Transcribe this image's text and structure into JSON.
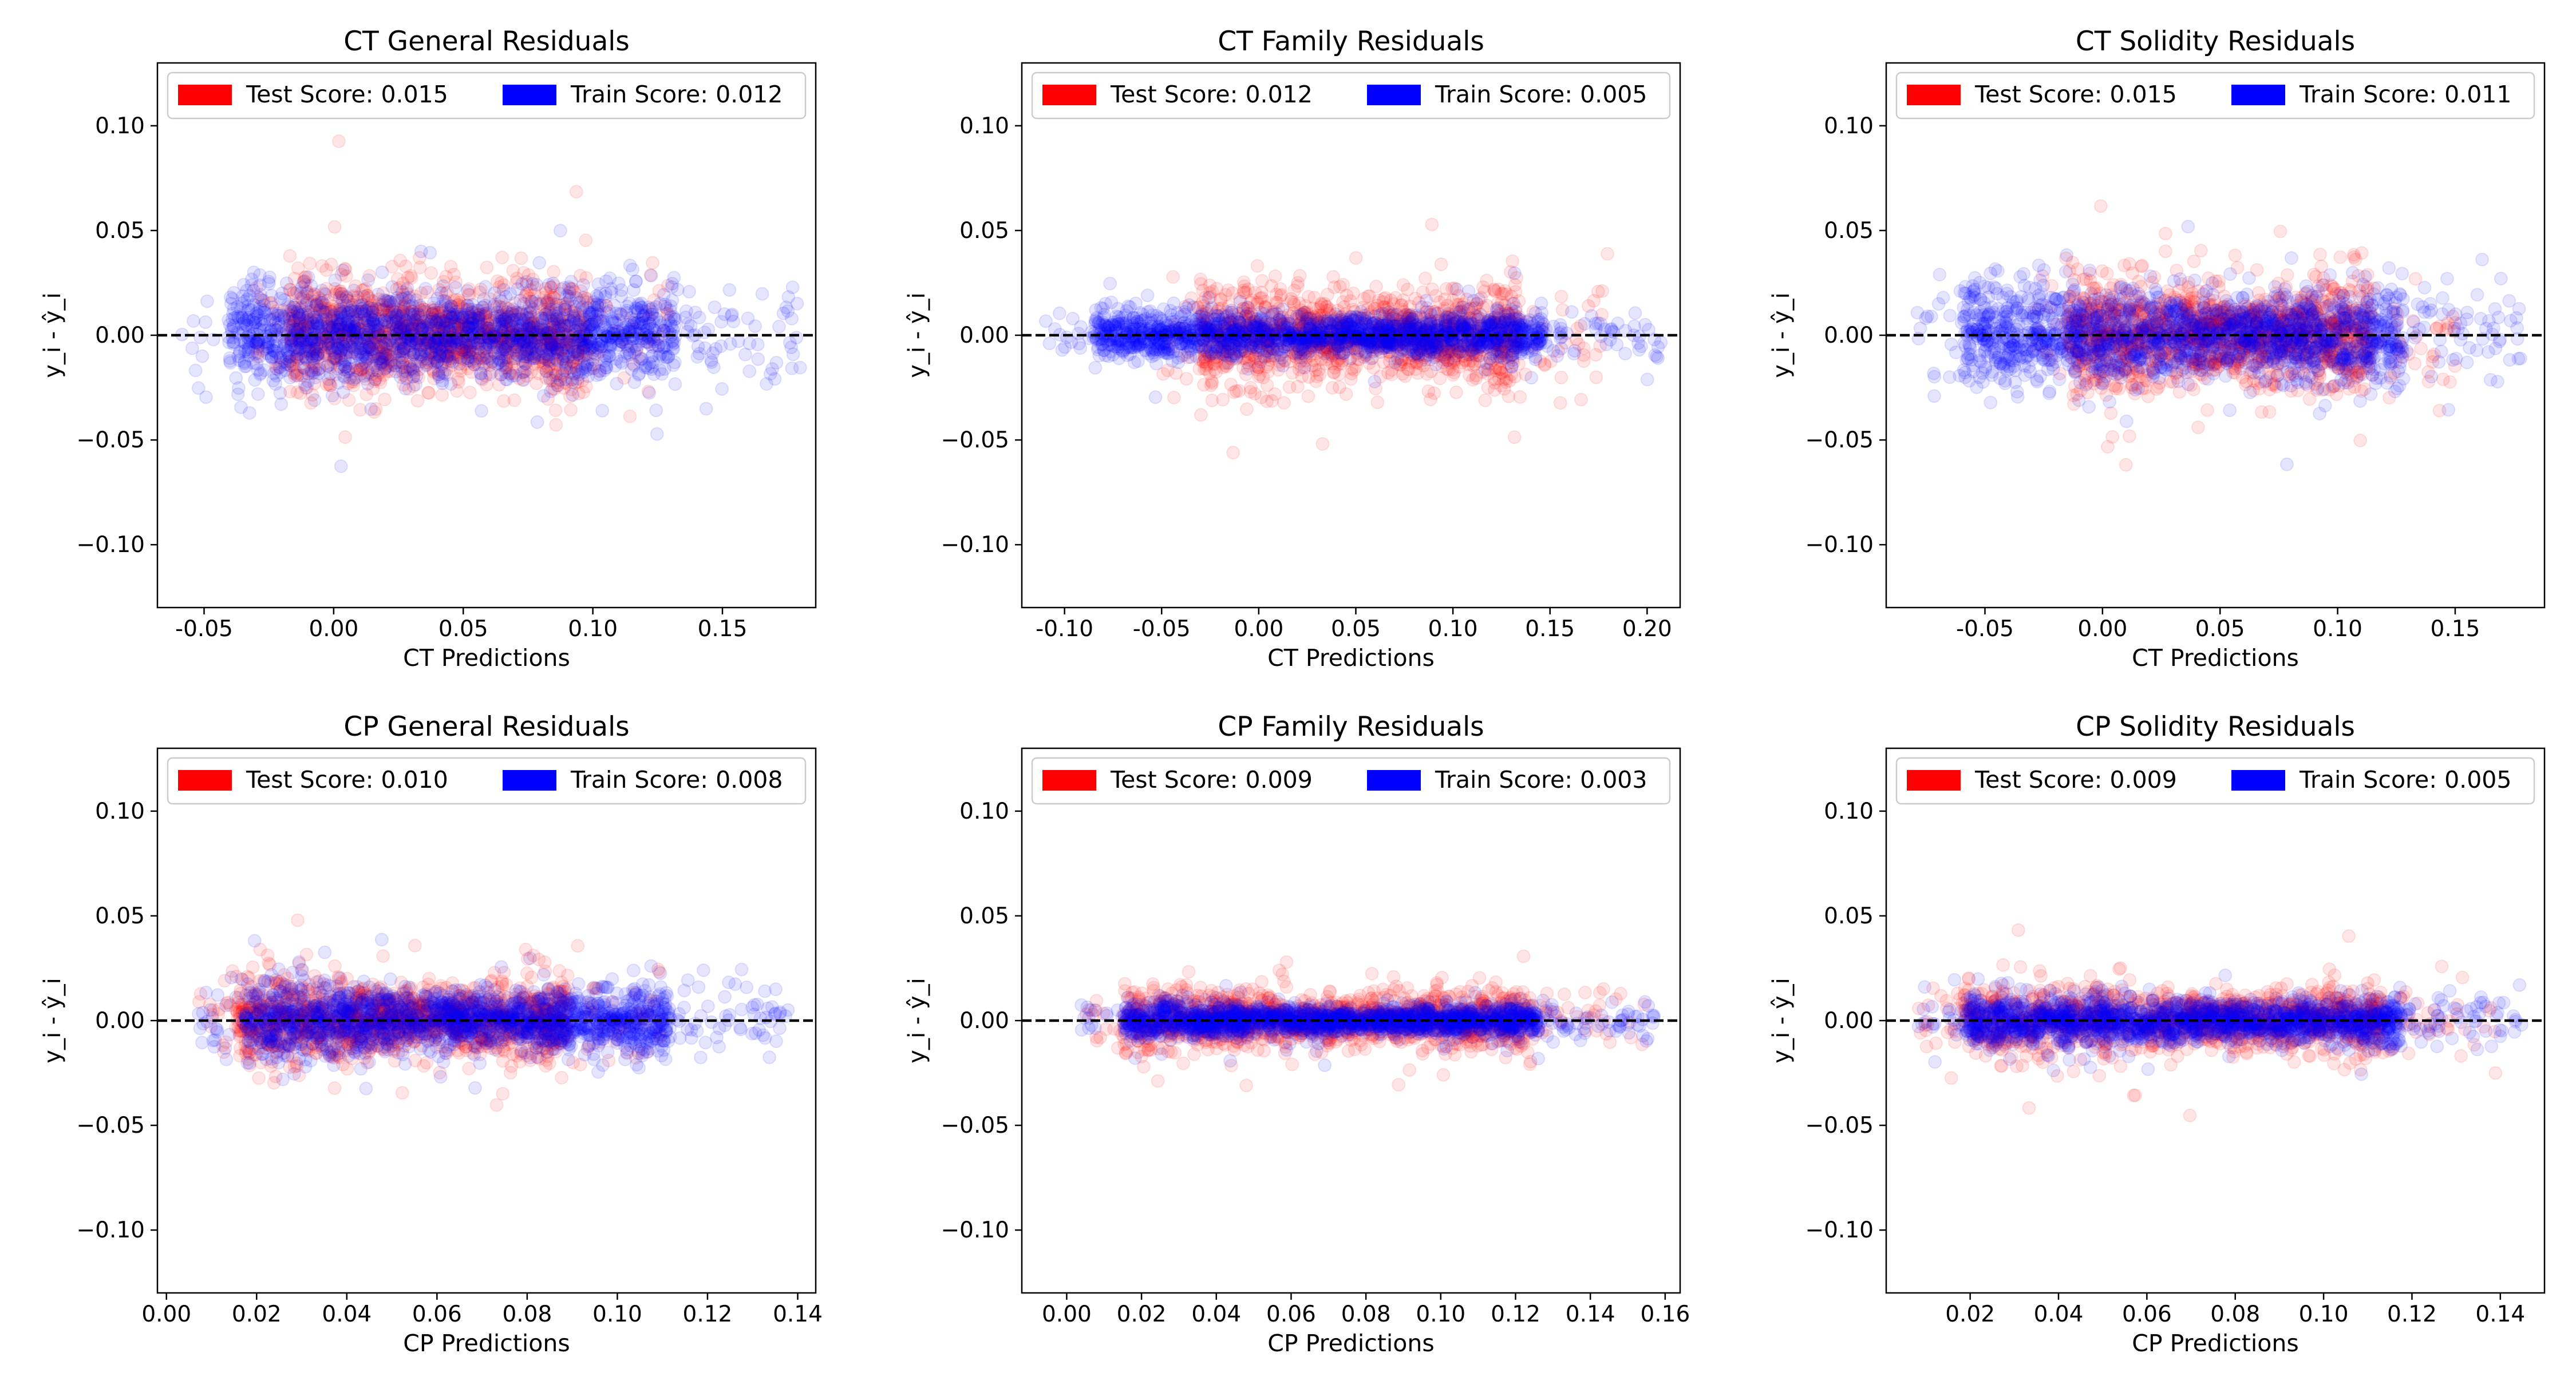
{
  "colors": {
    "test": "#ff0000",
    "train": "#0000ff",
    "axis": "#000000"
  },
  "chart_data": [
    {
      "type": "scatter",
      "title": "CT General Residuals",
      "xlabel": "CT Predictions",
      "ylabel": "y_i - ŷ_i",
      "xlim": [
        -0.068,
        0.186
      ],
      "ylim": [
        -0.13,
        0.13
      ],
      "xticks": [
        "-0.05",
        "0.00",
        "0.05",
        "0.10",
        "0.15"
      ],
      "xtick_values": [
        -0.05,
        0,
        0.05,
        0.1,
        0.15
      ],
      "yticks": [
        "0.10",
        "0.05",
        "0.00",
        "−0.05",
        "−0.10"
      ],
      "ytick_values": [
        0.1,
        0.05,
        0,
        -0.05,
        -0.1
      ],
      "legend": {
        "test": "Test Score: 0.015",
        "train": "Train Score: 0.012"
      },
      "series": [
        {
          "name": "Test",
          "x_range": [
            -0.03,
            0.13
          ],
          "spread": 0.035,
          "points": 1400
        },
        {
          "name": "Train",
          "x_range": [
            -0.06,
            0.18
          ],
          "spread": 0.03,
          "points": 1800
        }
      ]
    },
    {
      "type": "scatter",
      "title": "CT Family Residuals",
      "xlabel": "CT Predictions",
      "ylabel": "y_i - ŷ_i",
      "xlim": [
        -0.122,
        0.217
      ],
      "ylim": [
        -0.13,
        0.13
      ],
      "xticks": [
        "-0.10",
        "-0.05",
        "0.00",
        "0.05",
        "0.10",
        "0.15",
        "0.20"
      ],
      "xtick_values": [
        -0.1,
        -0.05,
        0,
        0.05,
        0.1,
        0.15,
        0.2
      ],
      "yticks": [
        "0.10",
        "0.05",
        "0.00",
        "−0.05",
        "−0.10"
      ],
      "ytick_values": [
        0.1,
        0.05,
        0,
        -0.05,
        -0.1
      ],
      "legend": {
        "test": "Test Score: 0.012",
        "train": "Train Score: 0.005"
      },
      "series": [
        {
          "name": "Test",
          "x_range": [
            -0.05,
            0.18
          ],
          "spread": 0.03,
          "points": 1300
        },
        {
          "name": "Train",
          "x_range": [
            -0.11,
            0.21
          ],
          "spread": 0.015,
          "points": 1800
        }
      ]
    },
    {
      "type": "scatter",
      "title": "CT Solidity Residuals",
      "xlabel": "CT Predictions",
      "ylabel": "y_i - ŷ_i",
      "xlim": [
        -0.092,
        0.188
      ],
      "ylim": [
        -0.13,
        0.13
      ],
      "xticks": [
        "-0.05",
        "0.00",
        "0.05",
        "0.10",
        "0.15"
      ],
      "xtick_values": [
        -0.05,
        0,
        0.05,
        0.1,
        0.15
      ],
      "yticks": [
        "0.10",
        "0.05",
        "0.00",
        "−0.05",
        "−0.10"
      ],
      "ytick_values": [
        0.1,
        0.05,
        0,
        -0.05,
        -0.1
      ],
      "legend": {
        "test": "Test Score: 0.015",
        "train": "Train Score: 0.011"
      },
      "series": [
        {
          "name": "Test",
          "x_range": [
            -0.03,
            0.15
          ],
          "spread": 0.035,
          "points": 1400
        },
        {
          "name": "Train",
          "x_range": [
            -0.08,
            0.18
          ],
          "spread": 0.03,
          "points": 1800
        }
      ]
    },
    {
      "type": "scatter",
      "title": "CP General Residuals",
      "xlabel": "CP Predictions",
      "ylabel": "y_i - ŷ_i",
      "xlim": [
        -0.002,
        0.144
      ],
      "ylim": [
        -0.13,
        0.13
      ],
      "xticks": [
        "0.00",
        "0.02",
        "0.04",
        "0.06",
        "0.08",
        "0.10",
        "0.12",
        "0.14"
      ],
      "xtick_values": [
        0,
        0.02,
        0.04,
        0.06,
        0.08,
        0.1,
        0.12,
        0.14
      ],
      "yticks": [
        "0.10",
        "0.05",
        "0.00",
        "−0.05",
        "−0.10"
      ],
      "ytick_values": [
        0.1,
        0.05,
        0,
        -0.05,
        -0.1
      ],
      "legend": {
        "test": "Test Score: 0.010",
        "train": "Train Score: 0.008"
      },
      "series": [
        {
          "name": "Test",
          "x_range": [
            0.007,
            0.11
          ],
          "spread": 0.025,
          "points": 1400
        },
        {
          "name": "Train",
          "x_range": [
            0.007,
            0.138
          ],
          "spread": 0.022,
          "points": 1800
        }
      ]
    },
    {
      "type": "scatter",
      "title": "CP Family Residuals",
      "xlabel": "CP Predictions",
      "ylabel": "y_i - ŷ_i",
      "xlim": [
        -0.012,
        0.164
      ],
      "ylim": [
        -0.13,
        0.13
      ],
      "xticks": [
        "0.00",
        "0.02",
        "0.04",
        "0.06",
        "0.08",
        "0.10",
        "0.12",
        "0.14",
        "0.16"
      ],
      "xtick_values": [
        0,
        0.02,
        0.04,
        0.06,
        0.08,
        0.1,
        0.12,
        0.14,
        0.16
      ],
      "yticks": [
        "0.10",
        "0.05",
        "0.00",
        "−0.05",
        "−0.10"
      ],
      "ytick_values": [
        0.1,
        0.05,
        0,
        -0.05,
        -0.1
      ],
      "legend": {
        "test": "Test Score: 0.009",
        "train": "Train Score: 0.003"
      },
      "series": [
        {
          "name": "Test",
          "x_range": [
            0.003,
            0.155
          ],
          "spread": 0.02,
          "points": 1300
        },
        {
          "name": "Train",
          "x_range": [
            0.003,
            0.157
          ],
          "spread": 0.01,
          "points": 1800
        }
      ]
    },
    {
      "type": "scatter",
      "title": "CP Solidity Residuals",
      "xlabel": "CP Predictions",
      "ylabel": "y_i - ŷ_i",
      "xlim": [
        0.001,
        0.15
      ],
      "ylim": [
        -0.13,
        0.13
      ],
      "xticks": [
        "0.02",
        "0.04",
        "0.06",
        "0.08",
        "0.10",
        "0.12",
        "0.14"
      ],
      "xtick_values": [
        0.02,
        0.04,
        0.06,
        0.08,
        0.1,
        0.12,
        0.14
      ],
      "yticks": [
        "0.10",
        "0.05",
        "0.00",
        "−0.05",
        "−0.10"
      ],
      "ytick_values": [
        0.1,
        0.05,
        0,
        -0.05,
        -0.1
      ],
      "legend": {
        "test": "Test Score: 0.009",
        "train": "Train Score: 0.005"
      },
      "series": [
        {
          "name": "Test",
          "x_range": [
            0.008,
            0.14
          ],
          "spread": 0.022,
          "points": 1300
        },
        {
          "name": "Train",
          "x_range": [
            0.008,
            0.145
          ],
          "spread": 0.015,
          "points": 1800
        }
      ]
    }
  ]
}
